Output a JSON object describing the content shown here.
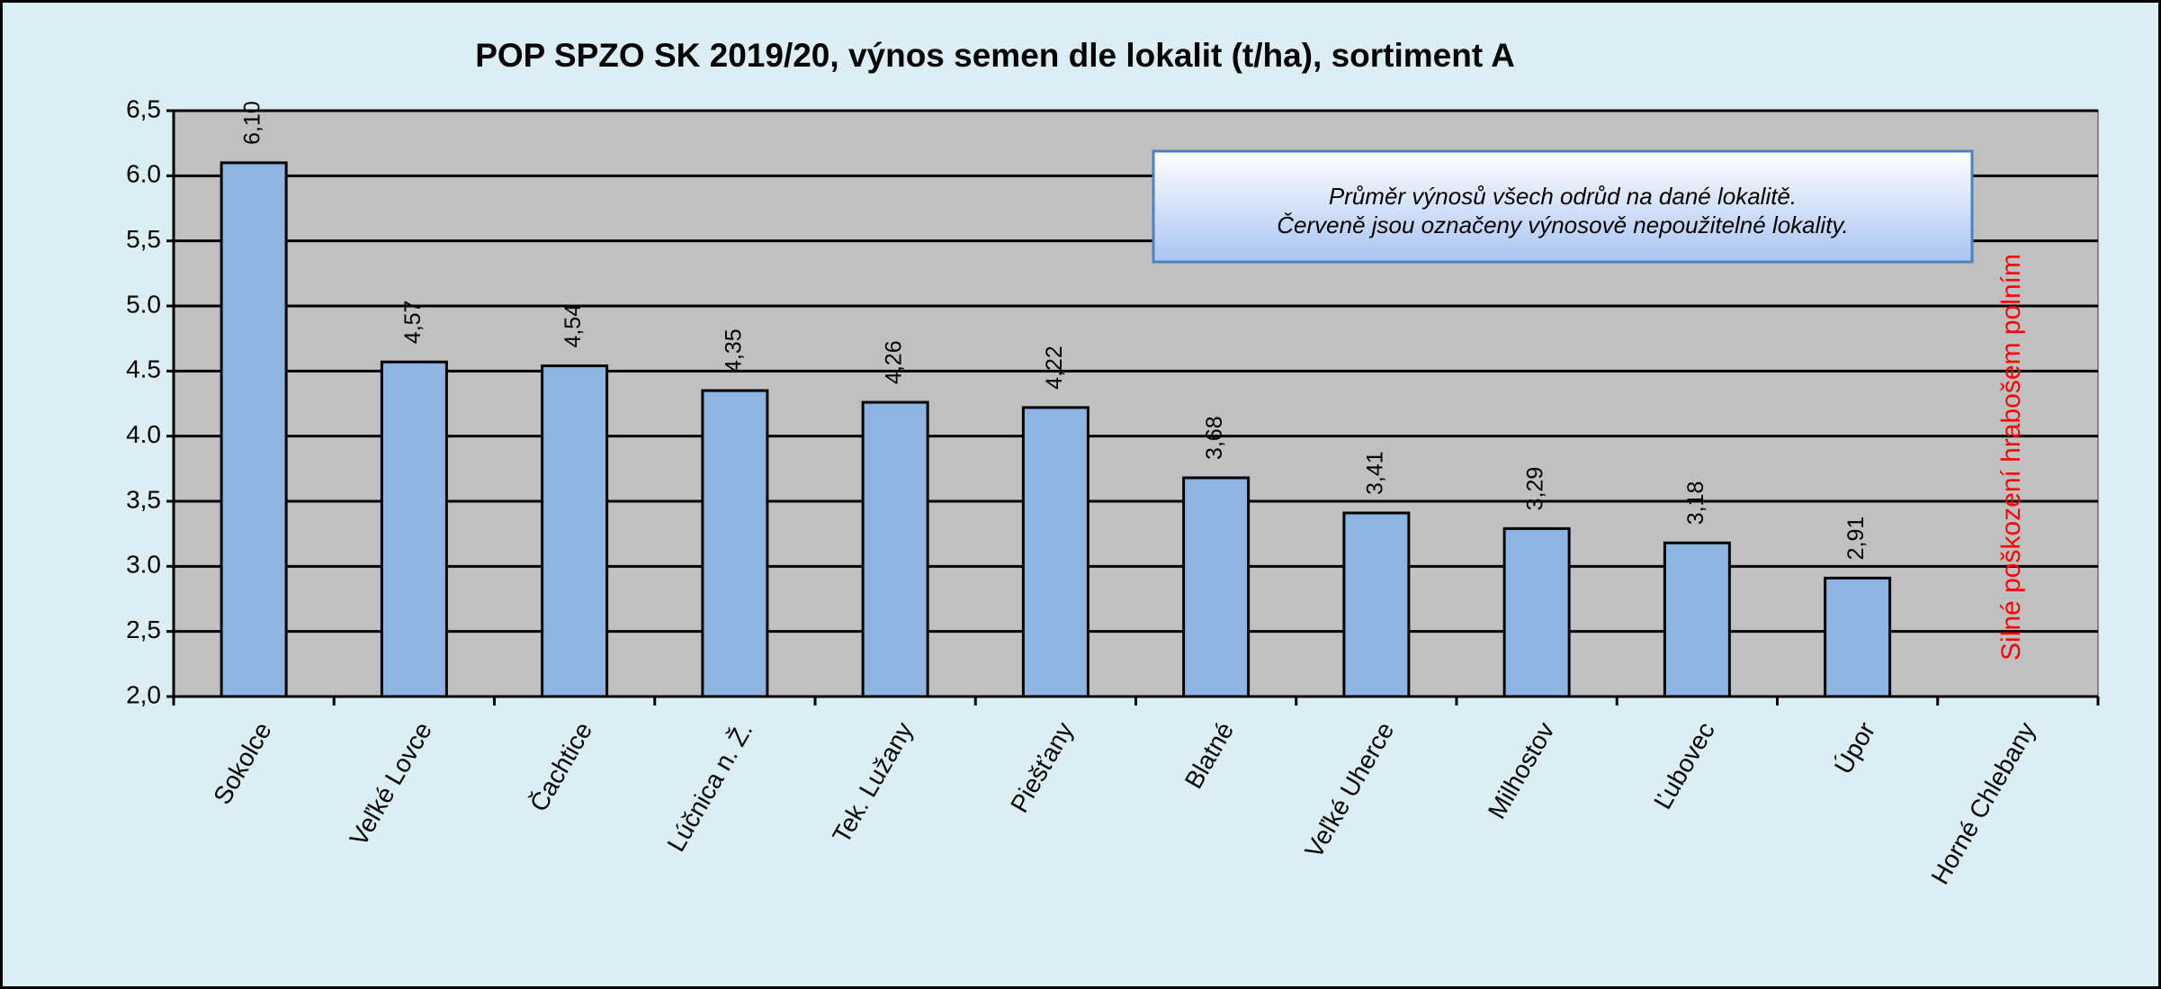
{
  "chart_data": {
    "type": "bar",
    "title": "POP SPZO SK 2019/20, výnos semen dle lokalit (t/ha), sortiment A",
    "categories": [
      "Sokolce",
      "Veľké Lovce",
      "Čachtice",
      "Lúčnica n. Ž.",
      "Tek. Lužany",
      "Piešťany",
      "Blatné",
      "Veľké Uherce",
      "Milhostov",
      "Ľubovec",
      "Úpor",
      "Horné Chlebany"
    ],
    "values": [
      6.1,
      4.57,
      4.54,
      4.35,
      4.26,
      4.22,
      3.68,
      3.41,
      3.29,
      3.18,
      2.91,
      null
    ],
    "value_labels": [
      "6,10",
      "4,57",
      "4,54",
      "4,35",
      "4,26",
      "4,22",
      "3,68",
      "3,41",
      "3,29",
      "3,18",
      "2,91",
      null
    ],
    "color": "#8eb4e3",
    "ylim": [
      2.0,
      6.5
    ],
    "yticks": [
      {
        "value": 2.0,
        "label": "2,0"
      },
      {
        "value": 2.5,
        "label": "2,5"
      },
      {
        "value": 3.0,
        "label": "3.0"
      },
      {
        "value": 3.5,
        "label": "3,5"
      },
      {
        "value": 4.0,
        "label": "4.0"
      },
      {
        "value": 4.5,
        "label": "4.5"
      },
      {
        "value": 5.0,
        "label": "5.0"
      },
      {
        "value": 5.5,
        "label": "5,5"
      },
      {
        "value": 6.0,
        "label": "6.0"
      },
      {
        "value": 6.5,
        "label": "6,5"
      }
    ],
    "grid": true,
    "annotations": [
      "Průměr výnosů všech odrůd na dané lokalitě.",
      "Červeně jsou označeny výnosově nepoužitelné lokality.",
      "Silné poškození hrabošem polním"
    ]
  }
}
